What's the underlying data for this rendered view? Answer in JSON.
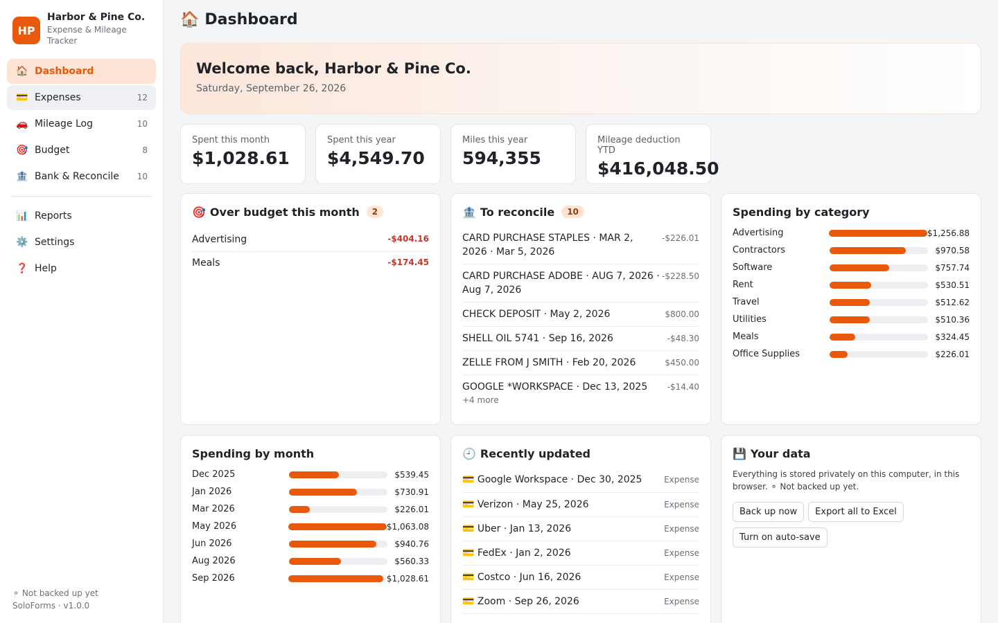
{
  "brand": {
    "initials": "HP",
    "name": "Harbor & Pine Co.",
    "subtitle": "Expense & Mileage Tracker"
  },
  "nav": [
    {
      "icon": "🏠",
      "label": "Dashboard",
      "count": ""
    },
    {
      "icon": "💳",
      "label": "Expenses",
      "count": "12"
    },
    {
      "icon": "🚗",
      "label": "Mileage Log",
      "count": "10"
    },
    {
      "icon": "🎯",
      "label": "Budget",
      "count": "8"
    },
    {
      "icon": "🏦",
      "label": "Bank & Reconcile",
      "count": "10"
    }
  ],
  "nav2": [
    {
      "icon": "📊",
      "label": "Reports"
    },
    {
      "icon": "⚙️",
      "label": "Settings"
    },
    {
      "icon": "❓",
      "label": "Help"
    }
  ],
  "footer": {
    "backup": "⚬ Not backed up yet",
    "version": "SoloForms · v1.0.0"
  },
  "page": {
    "icon": "🏠",
    "title": "Dashboard"
  },
  "welcome": {
    "title": "Welcome back, Harbor & Pine Co.",
    "date": "Saturday, September 26, 2026"
  },
  "stats": [
    {
      "label": "Spent this month",
      "value": "$1,028.61"
    },
    {
      "label": "Spent this year",
      "value": "$4,549.70"
    },
    {
      "label": "Miles this year",
      "value": "594,355"
    },
    {
      "label": "Mileage deduction YTD",
      "value": "$416,048.50"
    }
  ],
  "over_budget": {
    "icon": "🎯",
    "title": "Over budget this month",
    "count": "2",
    "items": [
      {
        "name": "Advertising",
        "amount": "-$404.16"
      },
      {
        "name": "Meals",
        "amount": "-$174.45"
      }
    ]
  },
  "reconcile": {
    "icon": "🏦",
    "title": "To reconcile",
    "count": "10",
    "items": [
      {
        "text": "CARD PURCHASE STAPLES · MAR 2, 2026 · Mar 5, 2026",
        "amount": "-$226.01"
      },
      {
        "text": "CARD PURCHASE ADOBE · AUG 7, 2026 · Aug 7, 2026",
        "amount": "-$228.50"
      },
      {
        "text": "CHECK DEPOSIT · May 2, 2026",
        "amount": "$800.00"
      },
      {
        "text": "SHELL OIL 5741 · Sep 16, 2026",
        "amount": "-$48.30"
      },
      {
        "text": "ZELLE FROM J SMITH · Feb 20, 2026",
        "amount": "$450.00"
      },
      {
        "text": "GOOGLE *WORKSPACE · Dec 13, 2025",
        "amount": "-$14.40"
      }
    ],
    "more": "+4 more"
  },
  "category": {
    "title": "Spending by category",
    "items": [
      {
        "label": "Advertising",
        "value": "$1,256.88",
        "fraction": 1.0
      },
      {
        "label": "Contractors",
        "value": "$970.58",
        "fraction": 0.772
      },
      {
        "label": "Software",
        "value": "$757.74",
        "fraction": 0.603
      },
      {
        "label": "Rent",
        "value": "$530.51",
        "fraction": 0.422
      },
      {
        "label": "Travel",
        "value": "$512.62",
        "fraction": 0.408
      },
      {
        "label": "Utilities",
        "value": "$510.36",
        "fraction": 0.406
      },
      {
        "label": "Meals",
        "value": "$324.45",
        "fraction": 0.258
      },
      {
        "label": "Office Supplies",
        "value": "$226.01",
        "fraction": 0.18
      }
    ]
  },
  "monthly": {
    "title": "Spending by month",
    "items": [
      {
        "label": "Dec 2025",
        "value": "$539.45",
        "fraction": 0.507
      },
      {
        "label": "Jan 2026",
        "value": "$730.91",
        "fraction": 0.687
      },
      {
        "label": "Mar 2026",
        "value": "$226.01",
        "fraction": 0.213
      },
      {
        "label": "May 2026",
        "value": "$1,063.08",
        "fraction": 1.0
      },
      {
        "label": "Jun 2026",
        "value": "$940.76",
        "fraction": 0.885
      },
      {
        "label": "Aug 2026",
        "value": "$560.33",
        "fraction": 0.527
      },
      {
        "label": "Sep 2026",
        "value": "$1,028.61",
        "fraction": 0.968
      }
    ]
  },
  "recent": {
    "icon": "🕘",
    "title": "Recently updated",
    "items": [
      {
        "icon": "💳",
        "text": "Google Workspace · Dec 30, 2025",
        "type": "Expense"
      },
      {
        "icon": "💳",
        "text": "Verizon · May 25, 2026",
        "type": "Expense"
      },
      {
        "icon": "💳",
        "text": "Uber · Jan 13, 2026",
        "type": "Expense"
      },
      {
        "icon": "💳",
        "text": "FedEx · Jan 2, 2026",
        "type": "Expense"
      },
      {
        "icon": "💳",
        "text": "Costco · Jun 16, 2026",
        "type": "Expense"
      },
      {
        "icon": "💳",
        "text": "Zoom · Sep 26, 2026",
        "type": "Expense"
      }
    ]
  },
  "yourdata": {
    "icon": "💾",
    "title": "Your data",
    "text": "Everything is stored privately on this computer, in this browser. ⚬ Not backed up yet.",
    "buttons": [
      "Back up now",
      "Export all to Excel",
      "Turn on auto-save"
    ]
  },
  "colors": {
    "accent": "#e8590c",
    "accent_soft": "#fde4d4",
    "negative": "#c0392b"
  }
}
